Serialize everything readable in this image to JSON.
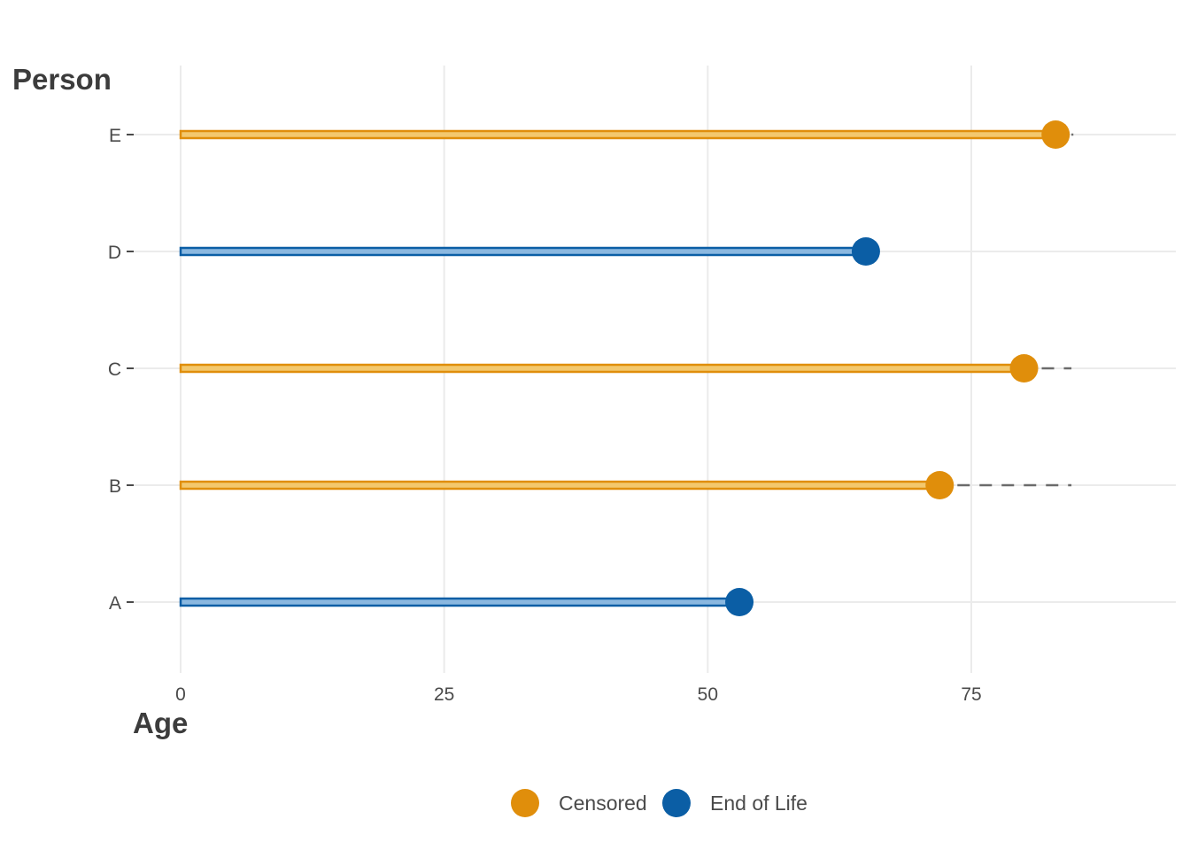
{
  "chart_data": {
    "type": "lollipop",
    "title": "",
    "xlabel": "Age",
    "ylabel": "Person",
    "xlim": [
      0,
      94.5
    ],
    "x_ticks": [
      0,
      25,
      50,
      75
    ],
    "x_tick_labels": [
      "0",
      "25",
      "50",
      "75"
    ],
    "grid": true,
    "legend_position": "bottom",
    "categories": [
      "A",
      "B",
      "C",
      "D",
      "E"
    ],
    "series": [
      {
        "name": "Censored",
        "color": "#E08E0B",
        "fill_color": "#F3C86E"
      },
      {
        "name": "End of Life",
        "color": "#0B5EA5",
        "fill_color": "#8BB8E0"
      }
    ],
    "records": [
      {
        "person": "A",
        "age": 53,
        "status": "End of Life",
        "extension_to": null
      },
      {
        "person": "B",
        "age": 72,
        "status": "Censored",
        "extension_to": 84.5
      },
      {
        "person": "C",
        "age": 80,
        "status": "Censored",
        "extension_to": 84.5
      },
      {
        "person": "D",
        "age": 65,
        "status": "End of Life",
        "extension_to": null
      },
      {
        "person": "E",
        "age": 83,
        "status": "Censored",
        "extension_to": 84.5
      }
    ]
  },
  "legend": {
    "items": [
      {
        "label": "Censored",
        "color": "#E08E0B"
      },
      {
        "label": "End of Life",
        "color": "#0B5EA5"
      }
    ]
  }
}
